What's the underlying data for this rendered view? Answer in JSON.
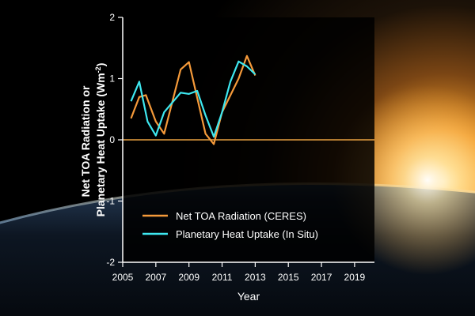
{
  "colors": {
    "ceres": "#f59a3a",
    "in_situ": "#3ee8f0",
    "zero_line": "#e8a040",
    "axes": "#ffffff",
    "text": "#ffffff",
    "panel": "#000000"
  },
  "chart_data": {
    "type": "line",
    "title": "",
    "xlabel": "Year",
    "ylabel_line1": "Net TOA Radiation or",
    "ylabel_line2": "Planetary Heat Uptake (Wm",
    "ylabel_superscript": "-2",
    "ylabel_close": ")",
    "xlim": [
      2005,
      2020.2
    ],
    "ylim": [
      -2,
      2
    ],
    "xticks": [
      2005,
      2007,
      2009,
      2011,
      2013,
      2015,
      2017,
      2019
    ],
    "xtick_labels": [
      "2005",
      "2007",
      "2009",
      "2011",
      "2013",
      "2015",
      "2017",
      "2019"
    ],
    "yticks": [
      -2,
      -1,
      0,
      1,
      2
    ],
    "ytick_labels": [
      "-2",
      "-1",
      "0",
      "1",
      "2"
    ],
    "zero_line": 0,
    "legend_position": "lower-left",
    "series": [
      {
        "name": "Net TOA Radiation (CERES)",
        "color_key": "ceres",
        "x": [
          2005.5,
          2006.0,
          2006.4,
          2007.0,
          2007.5,
          2008.5,
          2009.0,
          2010.0,
          2010.5,
          2011.0,
          2012.0,
          2012.5,
          2013.0
        ],
        "y": [
          0.35,
          0.7,
          0.73,
          0.3,
          0.1,
          1.15,
          1.27,
          0.1,
          -0.07,
          0.45,
          1.0,
          1.37,
          1.05
        ]
      },
      {
        "name": "Planetary Heat Uptake (In Situ)",
        "color_key": "in_situ",
        "x": [
          2005.5,
          2006.0,
          2006.5,
          2007.0,
          2007.5,
          2008.5,
          2009.0,
          2009.5,
          2010.0,
          2010.5,
          2011.0,
          2011.5,
          2012.0,
          2012.5,
          2013.0
        ],
        "y": [
          0.63,
          0.95,
          0.3,
          0.07,
          0.45,
          0.77,
          0.75,
          0.8,
          0.4,
          0.05,
          0.45,
          0.95,
          1.28,
          1.2,
          1.07
        ]
      }
    ]
  }
}
